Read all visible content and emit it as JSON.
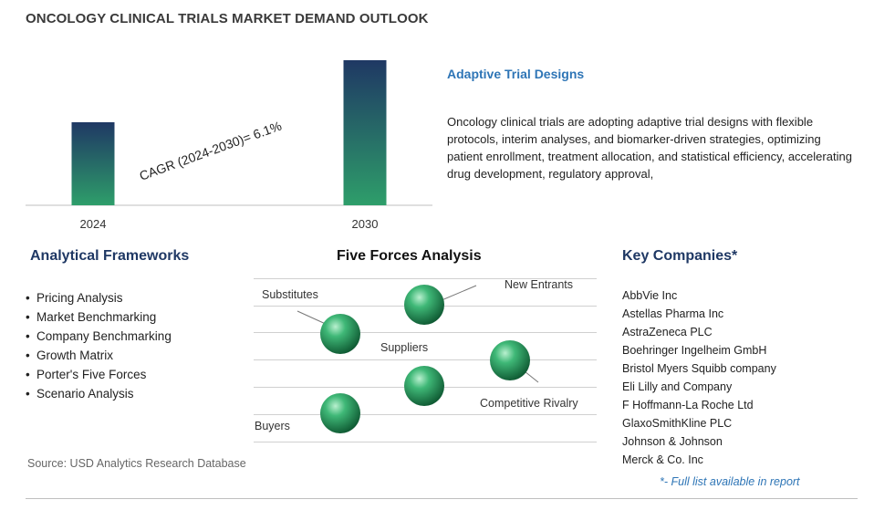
{
  "title": "ONCOLOGY CLINICAL TRIALS MARKET DEMAND OUTLOOK",
  "chart_data": {
    "type": "bar",
    "categories": [
      "2024",
      "2030"
    ],
    "annotation": "CAGR (2024-2030)=  6.1%",
    "colors": {
      "bar_top": "#1f3864",
      "bar_bottom": "#2e9e6a"
    }
  },
  "description": {
    "heading": "Adaptive Trial Designs",
    "body": "Oncology clinical trials are adopting adaptive trial designs with flexible protocols, interim analyses, and biomarker-driven strategies, optimizing patient enrollment, treatment allocation, and statistical efficiency, accelerating drug development, regulatory approval,"
  },
  "frameworks": {
    "heading": "Analytical Frameworks",
    "items": [
      "Pricing Analysis",
      "Market Benchmarking",
      "Company Benchmarking",
      "Growth Matrix",
      "Porter's Five Forces",
      "Scenario Analysis"
    ]
  },
  "five_forces": {
    "heading": "Five Forces Analysis",
    "labels": {
      "substitutes": "Substitutes",
      "new_entrants": "New Entrants",
      "suppliers": "Suppliers",
      "competitive_rivalry": "Competitive Rivalry",
      "buyers": "Buyers"
    }
  },
  "companies": {
    "heading": "Key Companies*",
    "items": [
      "AbbVie Inc",
      "Astellas Pharma Inc",
      "AstraZeneca PLC",
      "Boehringer Ingelheim GmbH",
      "Bristol Myers Squibb company",
      "Eli Lilly and Company",
      "F Hoffmann-La Roche Ltd",
      "GlaxoSmithKline PLC",
      "Johnson & Johnson",
      "Merck & Co. Inc"
    ],
    "note": "*- Full list available in report"
  },
  "source": "Source: USD Analytics Research Database"
}
